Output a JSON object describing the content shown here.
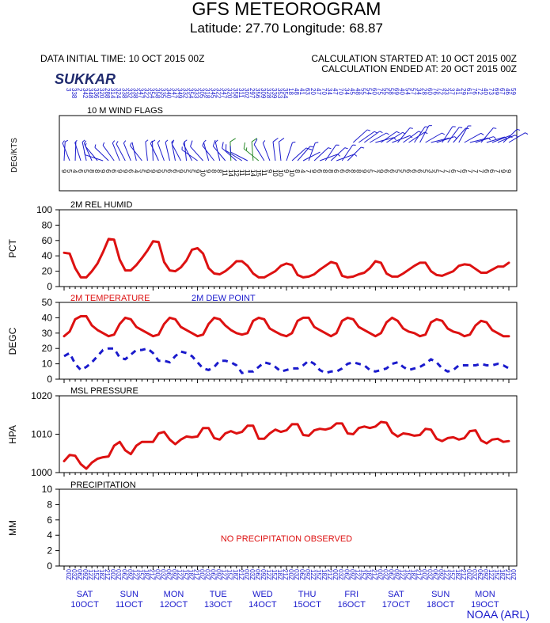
{
  "header": {
    "title": "GFS METEOROGRAM",
    "coords": "Latitude: 27.70 Longitude:  68.87",
    "init_time": "DATA INITIAL TIME: 10 OCT 2015 00Z",
    "calc_start": "CALCULATION STARTED AT: 10 OCT 2015 00Z",
    "calc_end": "CALCULATION ENDED AT: 20 OCT 2015 00Z",
    "station": "SUKKAR"
  },
  "footer": {
    "credit": "NOAA (ARL)"
  },
  "colors": {
    "text": "#000000",
    "blue": "#1a1acc",
    "red": "#dd1111",
    "green": "#2a8a2a"
  },
  "chart_data": [
    {
      "type": "wind-barbs",
      "title": "10 M  WIND FLAGS",
      "ylabel": "DEG/KTS",
      "directions": [
        3,
        338,
        2,
        342,
        348,
        336,
        320,
        288,
        314,
        324,
        338,
        332,
        338,
        347,
        322,
        354,
        358,
        335,
        340,
        347,
        349,
        332,
        354,
        333,
        305,
        318,
        345,
        322,
        347,
        320,
        358,
        311,
        302,
        297,
        356,
        309,
        328,
        339,
        353,
        354,
        18,
        48,
        41,
        63,
        20,
        47,
        70,
        34,
        47,
        70,
        34,
        45,
        48,
        55,
        54,
        60,
        75,
        55,
        58,
        69,
        40,
        54,
        57,
        34,
        28,
        60,
        76,
        72,
        33,
        37,
        41,
        29,
        61,
        76,
        72,
        40,
        73,
        69,
        67,
        46,
        59
      ],
      "speeds": [
        9,
        5,
        4,
        6,
        5,
        8,
        8,
        9,
        6,
        6,
        9,
        9,
        6,
        4,
        5,
        9,
        9,
        9,
        5,
        6,
        6,
        9,
        5,
        5,
        9,
        10,
        9,
        8,
        8,
        11,
        14,
        12,
        11,
        11,
        14,
        15,
        11,
        9,
        10,
        10,
        9,
        10,
        8,
        4,
        7,
        9,
        6,
        8,
        8,
        6,
        6,
        6,
        8,
        8,
        9,
        5,
        7,
        9,
        6,
        6,
        5,
        5,
        6,
        6,
        6,
        5,
        3,
        5,
        7,
        7,
        6,
        7,
        6,
        7,
        7,
        7,
        6,
        6,
        7,
        9,
        9
      ]
    },
    {
      "type": "line",
      "title": "2M REL HUMID",
      "ylabel": "PCT",
      "ylim": [
        0,
        100
      ],
      "yticks": [
        0,
        20,
        40,
        60,
        80,
        100
      ],
      "series": [
        {
          "name": "",
          "color": "#dd1111",
          "values": [
            44,
            43,
            24,
            12,
            12,
            20,
            30,
            45,
            62,
            61,
            35,
            21,
            21,
            28,
            37,
            47,
            59,
            58,
            32,
            21,
            20,
            25,
            34,
            48,
            50,
            43,
            24,
            17,
            16,
            20,
            26,
            33,
            33,
            27,
            17,
            12,
            12,
            16,
            20,
            27,
            30,
            28,
            15,
            12,
            13,
            16,
            22,
            27,
            32,
            30,
            14,
            12,
            13,
            16,
            18,
            24,
            33,
            31,
            17,
            13,
            13,
            17,
            22,
            27,
            31,
            31,
            20,
            15,
            14,
            17,
            20,
            27,
            29,
            28,
            23,
            18,
            18,
            22,
            26,
            26,
            31
          ]
        }
      ]
    },
    {
      "type": "line",
      "legend": [
        "2M TEMPERATURE",
        "2M  DEW POINT"
      ],
      "ylabel": "DEGC",
      "ylim": [
        0,
        50
      ],
      "yticks": [
        0,
        10,
        20,
        30,
        40,
        50
      ],
      "series": [
        {
          "name": "2M TEMPERATURE",
          "color": "#dd1111",
          "style": "solid",
          "values": [
            28,
            31,
            39,
            41,
            41,
            35,
            32,
            30,
            28,
            29,
            36,
            40,
            39,
            34,
            32,
            30,
            28,
            29,
            36,
            40,
            39,
            34,
            32,
            30,
            28,
            29,
            36,
            40,
            39,
            35,
            32,
            30,
            29,
            30,
            38,
            40,
            39,
            33,
            31,
            29,
            28,
            30,
            38,
            40,
            40,
            34,
            32,
            30,
            28,
            30,
            38,
            40,
            39,
            34,
            32,
            30,
            28,
            30,
            37,
            40,
            38,
            33,
            31,
            30,
            28,
            29,
            37,
            39,
            38,
            33,
            31,
            30,
            28,
            29,
            35,
            38,
            37,
            32,
            30,
            28,
            28
          ]
        },
        {
          "name": "2M  DEW POINT",
          "color": "#1a1acc",
          "style": "dashed",
          "values": [
            15,
            17,
            10,
            6,
            8,
            11,
            15,
            19,
            20,
            20,
            14,
            13,
            16,
            19,
            19,
            20,
            17,
            12,
            12,
            11,
            15,
            18,
            17,
            15,
            11,
            7,
            6,
            8,
            12,
            12,
            11,
            9,
            4,
            5,
            5,
            8,
            11,
            10,
            8,
            5,
            6,
            7,
            7,
            9,
            12,
            10,
            6,
            4,
            5,
            5,
            7,
            10,
            11,
            10,
            9,
            6,
            5,
            6,
            7,
            10,
            11,
            8,
            6,
            7,
            8,
            10,
            13,
            11,
            7,
            5,
            6,
            9,
            9,
            9,
            9,
            10,
            9,
            9,
            10,
            9,
            7
          ]
        }
      ]
    },
    {
      "type": "line",
      "title": "MSL PRESSURE",
      "ylabel": "HPA",
      "ylim": [
        1000,
        1020
      ],
      "yticks": [
        1000,
        1010,
        1020
      ],
      "series": [
        {
          "name": "",
          "color": "#dd1111",
          "values": [
            1003,
            1004.6,
            1004.4,
            1002.2,
            1001.0,
            1002.6,
            1003.6,
            1004.0,
            1004.2,
            1007.0,
            1008.0,
            1005.8,
            1004.8,
            1007.0,
            1008.0,
            1008.0,
            1008.0,
            1010.2,
            1010.6,
            1008.6,
            1007.4,
            1008.6,
            1009.4,
            1009.2,
            1009.4,
            1011.6,
            1011.6,
            1009.0,
            1008.6,
            1010.2,
            1010.8,
            1010.2,
            1010.6,
            1012.2,
            1012.2,
            1008.8,
            1008.8,
            1010.2,
            1011.2,
            1010.6,
            1011.0,
            1012.6,
            1012.6,
            1009.8,
            1009.6,
            1011.0,
            1011.4,
            1011.2,
            1011.6,
            1012.8,
            1012.8,
            1010.2,
            1010.0,
            1011.6,
            1012.0,
            1011.6,
            1012.0,
            1013.2,
            1013.0,
            1010.4,
            1009.4,
            1010.2,
            1010.0,
            1009.6,
            1009.8,
            1011.4,
            1011.2,
            1008.8,
            1008.2,
            1009.0,
            1009.2,
            1008.6,
            1009.0,
            1010.8,
            1011.0,
            1008.4,
            1007.6,
            1008.6,
            1008.8,
            1008.0,
            1008.2
          ]
        }
      ]
    },
    {
      "type": "line",
      "title": "PRECIPITATION",
      "ylabel": "MM",
      "ylim": [
        0,
        10
      ],
      "yticks": [
        0,
        2,
        4,
        6,
        8,
        10
      ],
      "annotation": "NO PRECIPITATION OBSERVED",
      "series": []
    }
  ],
  "x_axis": {
    "hours": [
      "00Z",
      "03Z",
      "06Z",
      "09Z",
      "12Z",
      "15Z",
      "18Z",
      "21Z",
      "00Z",
      "03Z",
      "06Z",
      "09Z",
      "12Z",
      "15Z",
      "18Z",
      "21Z",
      "00Z",
      "03Z",
      "06Z",
      "09Z",
      "12Z",
      "15Z",
      "18Z",
      "21Z",
      "00Z",
      "03Z",
      "06Z",
      "09Z",
      "12Z",
      "15Z",
      "18Z",
      "21Z",
      "00Z",
      "03Z",
      "06Z",
      "09Z",
      "12Z",
      "15Z",
      "18Z",
      "21Z",
      "00Z",
      "03Z",
      "06Z",
      "09Z",
      "12Z",
      "15Z",
      "18Z",
      "21Z",
      "00Z",
      "03Z",
      "06Z",
      "09Z",
      "12Z",
      "15Z",
      "18Z",
      "21Z",
      "00Z",
      "03Z",
      "06Z",
      "09Z",
      "12Z",
      "15Z",
      "18Z",
      "21Z",
      "00Z",
      "03Z",
      "06Z",
      "09Z",
      "12Z",
      "15Z",
      "18Z",
      "21Z",
      "00Z",
      "03Z",
      "06Z",
      "09Z",
      "12Z",
      "15Z",
      "18Z",
      "21Z",
      "00Z"
    ],
    "days": [
      {
        "name": "SAT",
        "date": "10OCT"
      },
      {
        "name": "SUN",
        "date": "11OCT"
      },
      {
        "name": "MON",
        "date": "12OCT"
      },
      {
        "name": "TUE",
        "date": "13OCT"
      },
      {
        "name": "WED",
        "date": "14OCT"
      },
      {
        "name": "THU",
        "date": "15OCT"
      },
      {
        "name": "FRI",
        "date": "16OCT"
      },
      {
        "name": "SAT",
        "date": "17OCT"
      },
      {
        "name": "SUN",
        "date": "18OCT"
      },
      {
        "name": "MON",
        "date": "19OCT"
      }
    ]
  }
}
